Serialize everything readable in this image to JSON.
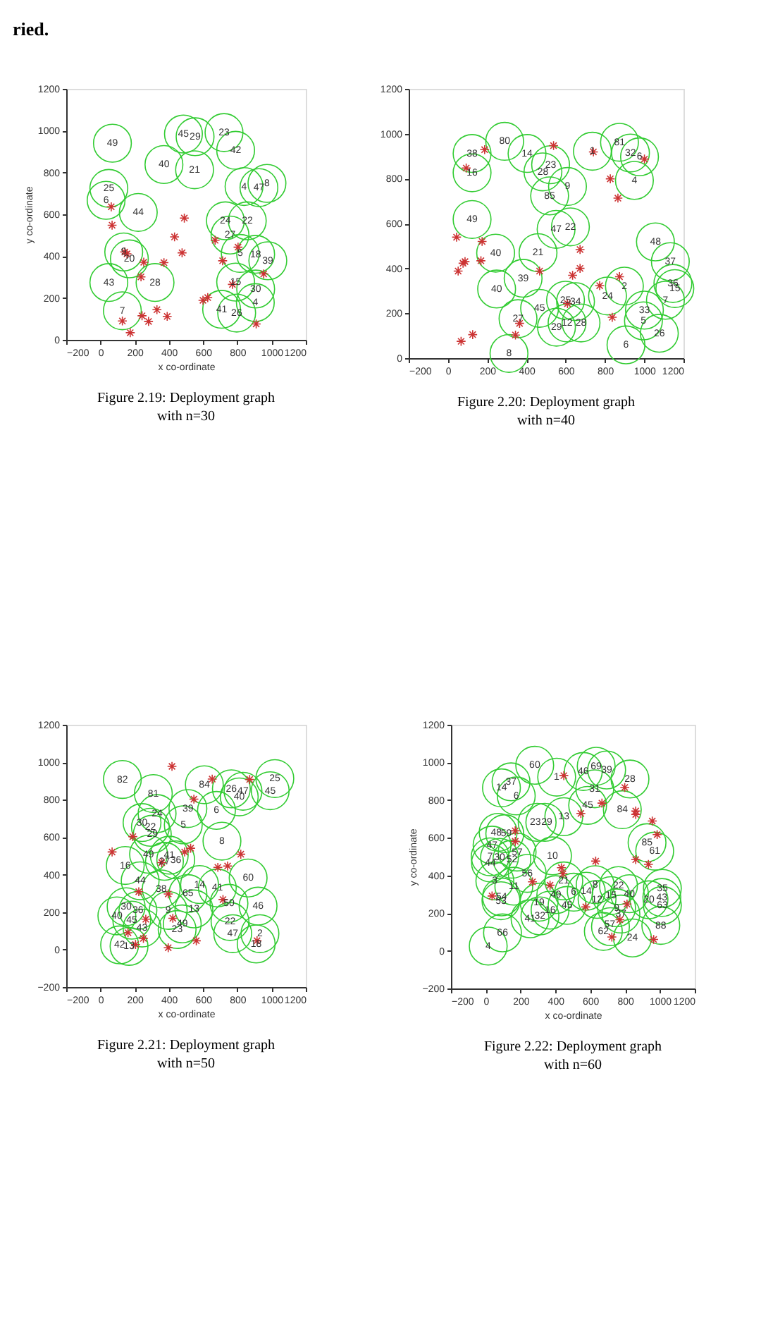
{
  "chart_data": [
    {
      "type": "scatter",
      "xlim": [
        -200,
        1200
      ],
      "ylim": [
        0,
        1200
      ],
      "xticks": [
        -200,
        0,
        200,
        400,
        600,
        800,
        1000,
        1200
      ],
      "yticks": [
        0,
        200,
        400,
        600,
        800,
        1000,
        1200
      ],
      "xlabel": "x co-ordinate",
      "ylabel": "y co-ordinate",
      "annotations": [
        "ried.",
        {
          "text": "49",
          "x": 70,
          "y": 940
        },
        {
          "text": "45",
          "x": 485,
          "y": 984
        },
        {
          "text": "29",
          "x": 553,
          "y": 971
        },
        {
          "text": "23",
          "x": 722,
          "y": 991
        },
        {
          "text": "42",
          "x": 790,
          "y": 906
        },
        {
          "text": "40",
          "x": 371,
          "y": 838
        },
        {
          "text": "21",
          "x": 550,
          "y": 813
        },
        {
          "text": "25",
          "x": 49,
          "y": 724
        },
        {
          "text": "6",
          "x": 33,
          "y": 667
        },
        {
          "text": "44",
          "x": 221,
          "y": 609
        },
        {
          "text": "4",
          "x": 839,
          "y": 733
        },
        {
          "text": "47",
          "x": 926,
          "y": 728
        },
        {
          "text": "8",
          "x": 973,
          "y": 748
        },
        {
          "text": "24",
          "x": 730,
          "y": 569
        },
        {
          "text": "22",
          "x": 858,
          "y": 569
        },
        {
          "text": "27",
          "x": 757,
          "y": 501
        },
        {
          "text": "5",
          "x": 817,
          "y": 413
        },
        {
          "text": "18",
          "x": 907,
          "y": 409
        },
        {
          "text": "39",
          "x": 978,
          "y": 378
        },
        {
          "text": "20",
          "x": 169,
          "y": 387
        },
        {
          "text": "9",
          "x": 136,
          "y": 420
        },
        {
          "text": "43",
          "x": 49,
          "y": 274
        },
        {
          "text": "28",
          "x": 319,
          "y": 274
        },
        {
          "text": "15",
          "x": 790,
          "y": 276
        },
        {
          "text": "30",
          "x": 907,
          "y": 243
        },
        {
          "text": "4",
          "x": 905,
          "y": 178
        },
        {
          "text": "41",
          "x": 708,
          "y": 146
        },
        {
          "text": "26",
          "x": 796,
          "y": 128
        },
        {
          "text": "7",
          "x": 128,
          "y": 139
        },
        "Figure 2.19: Deployment graph with n=30"
      ],
      "series": [
        {
          "color": "#33cc33",
          "marker": "circle",
          "x": [
            70,
            485,
            553,
            722,
            790,
            371,
            550,
            49,
            33,
            221,
            839,
            926,
            973,
            730,
            858,
            757,
            817,
            907,
            978,
            169,
            136,
            49,
            319,
            790,
            907,
            905,
            708,
            796,
            128
          ],
          "values": [
            940,
            984,
            971,
            991,
            906,
            838,
            813,
            724,
            667,
            609,
            733,
            728,
            748,
            569,
            569,
            501,
            413,
            409,
            378,
            387,
            420,
            274,
            274,
            276,
            243,
            178,
            146,
            128,
            139
          ]
        },
        {
          "color": "#cc3333",
          "marker": "cross",
          "x": [
            63,
            68,
            490,
            433,
            477,
            142,
            155,
            253,
            371,
            237,
            330,
            390,
            243,
            281,
            128,
            174,
            599,
            627,
            670,
            714,
            804,
            771,
            954,
            910
          ],
          "values": [
            636,
            548,
            582,
            492,
            416,
            420,
            411,
            371,
            369,
            301,
            144,
            112,
            115,
            88,
            90,
            34,
            189,
            202,
            476,
            378,
            443,
            265,
            315,
            76
          ]
        }
      ]
    },
    {
      "type": "scatter",
      "xlim": [
        -200,
        1200
      ],
      "ylim": [
        0,
        1200
      ],
      "xticks": [
        -200,
        0,
        200,
        400,
        600,
        800,
        1000,
        1200
      ],
      "yticks": [
        0,
        200,
        400,
        600,
        800,
        1000,
        1200
      ],
      "annotations": [
        {
          "text": "80",
          "x": 289,
          "y": 966
        },
        {
          "text": "38",
          "x": 123,
          "y": 912
        },
        {
          "text": "16",
          "x": 123,
          "y": 826
        },
        {
          "text": "14",
          "x": 403,
          "y": 912
        },
        {
          "text": "23",
          "x": 523,
          "y": 862
        },
        {
          "text": "28",
          "x": 484,
          "y": 830
        },
        {
          "text": "9",
          "x": 609,
          "y": 765
        },
        {
          "text": "85",
          "x": 518,
          "y": 723
        },
        {
          "text": "1",
          "x": 736,
          "y": 922
        },
        {
          "text": "81",
          "x": 874,
          "y": 962
        },
        {
          "text": "32",
          "x": 930,
          "y": 914
        },
        {
          "text": "6",
          "x": 976,
          "y": 897
        },
        {
          "text": "4",
          "x": 950,
          "y": 792
        },
        {
          "text": "49",
          "x": 123,
          "y": 618
        },
        {
          "text": "47",
          "x": 551,
          "y": 574
        },
        {
          "text": "22",
          "x": 624,
          "y": 585
        },
        {
          "text": "48",
          "x": 1057,
          "y": 518
        },
        {
          "text": "40",
          "x": 243,
          "y": 468
        },
        {
          "text": "21",
          "x": 459,
          "y": 470
        },
        {
          "text": "37",
          "x": 1133,
          "y": 430
        },
        {
          "text": "39",
          "x": 383,
          "y": 356
        },
        {
          "text": "40",
          "x": 248,
          "y": 308
        },
        {
          "text": "2",
          "x": 899,
          "y": 321
        },
        {
          "text": "24",
          "x": 813,
          "y": 277
        },
        {
          "text": "36",
          "x": 1146,
          "y": 333
        },
        {
          "text": "15",
          "x": 1156,
          "y": 310
        },
        {
          "text": "7",
          "x": 1108,
          "y": 258
        },
        {
          "text": "25",
          "x": 599,
          "y": 258
        },
        {
          "text": "34",
          "x": 650,
          "y": 252
        },
        {
          "text": "45",
          "x": 467,
          "y": 222
        },
        {
          "text": "27",
          "x": 357,
          "y": 176
        },
        {
          "text": "29",
          "x": 553,
          "y": 138
        },
        {
          "text": "12",
          "x": 607,
          "y": 157
        },
        {
          "text": "28",
          "x": 678,
          "y": 157
        },
        {
          "text": "33",
          "x": 1001,
          "y": 214
        },
        {
          "text": "5",
          "x": 996,
          "y": 166
        },
        {
          "text": "26",
          "x": 1077,
          "y": 111
        },
        {
          "text": "6",
          "x": 907,
          "y": 59
        },
        {
          "text": "8",
          "x": 311,
          "y": 21
        },
        "Figure 2.20: Deployment graph with n=40"
      ],
      "series": [
        {
          "color": "#33cc33",
          "marker": "circle",
          "x": [
            289,
            123,
            123,
            403,
            523,
            484,
            609,
            518,
            736,
            874,
            930,
            976,
            950,
            123,
            551,
            624,
            1057,
            243,
            459,
            1133,
            383,
            248,
            899,
            813,
            1146,
            1156,
            1108,
            599,
            650,
            467,
            357,
            553,
            607,
            678,
            1001,
            996,
            1077,
            907,
            311
          ],
          "values": [
            966,
            912,
            826,
            912,
            862,
            830,
            765,
            723,
            922,
            962,
            914,
            897,
            792,
            618,
            574,
            585,
            518,
            468,
            470,
            430,
            356,
            308,
            321,
            277,
            333,
            310,
            258,
            258,
            252,
            222,
            176,
            138,
            157,
            157,
            214,
            166,
            111,
            59,
            21
          ]
        },
        {
          "color": "#cc3333",
          "marker": "cross",
          "x": [
            187,
            93,
            538,
            741,
            827,
            866,
            1001,
            44,
            174,
            168,
            87,
            77,
            52,
            467,
            673,
            673,
            635,
            874,
            773,
            837,
            365,
            344,
            126,
            67,
            609
          ],
          "values": [
            929,
            847,
            947,
            919,
            799,
            713,
            887,
            539,
            520,
            434,
            430,
            423,
            388,
            388,
            484,
            400,
            369,
            363,
            323,
            182,
            155,
            103,
            105,
            75,
            243
          ]
        }
      ]
    },
    {
      "type": "scatter",
      "xlim": [
        -200,
        1200
      ],
      "ylim": [
        -200,
        1200
      ],
      "xticks": [
        -200,
        0,
        200,
        400,
        600,
        800,
        1000,
        1200
      ],
      "yticks": [
        -200,
        0,
        200,
        400,
        600,
        800,
        1000,
        1200
      ],
      "xlabel": "x co-ordinate",
      "annotations": [
        {
          "text": "82",
          "x": 128,
          "y": 908
        },
        {
          "text": "84",
          "x": 607,
          "y": 880
        },
        {
          "text": "26",
          "x": 765,
          "y": 858
        },
        {
          "text": "47",
          "x": 833,
          "y": 845
        },
        {
          "text": "40",
          "x": 811,
          "y": 815
        },
        {
          "text": "25",
          "x": 1019,
          "y": 913
        },
        {
          "text": "45",
          "x": 992,
          "y": 848
        },
        {
          "text": "81",
          "x": 309,
          "y": 833
        },
        {
          "text": "39",
          "x": 511,
          "y": 753
        },
        {
          "text": "6",
          "x": 678,
          "y": 743
        },
        {
          "text": "24",
          "x": 331,
          "y": 726
        },
        {
          "text": "30",
          "x": 243,
          "y": 678
        },
        {
          "text": "22",
          "x": 292,
          "y": 653
        },
        {
          "text": "29",
          "x": 303,
          "y": 616
        },
        {
          "text": "5",
          "x": 484,
          "y": 666
        },
        {
          "text": "8",
          "x": 710,
          "y": 579
        },
        {
          "text": "49",
          "x": 281,
          "y": 509
        },
        {
          "text": "41",
          "x": 402,
          "y": 504
        },
        {
          "text": "27",
          "x": 374,
          "y": 471
        },
        {
          "text": "36",
          "x": 440,
          "y": 479
        },
        {
          "text": "16",
          "x": 145,
          "y": 449
        },
        {
          "text": "60",
          "x": 863,
          "y": 382
        },
        {
          "text": "44",
          "x": 232,
          "y": 367
        },
        {
          "text": "14",
          "x": 579,
          "y": 347
        },
        {
          "text": "38",
          "x": 355,
          "y": 324
        },
        {
          "text": "65",
          "x": 511,
          "y": 299
        },
        {
          "text": "41",
          "x": 683,
          "y": 329
        },
        {
          "text": "50",
          "x": 751,
          "y": 247
        },
        {
          "text": "46",
          "x": 921,
          "y": 232
        },
        {
          "text": "30",
          "x": 150,
          "y": 229
        },
        {
          "text": "36",
          "x": 219,
          "y": 209
        },
        {
          "text": "40",
          "x": 96,
          "y": 180
        },
        {
          "text": "45",
          "x": 183,
          "y": 157
        },
        {
          "text": "9",
          "x": 396,
          "y": 209
        },
        {
          "text": "13",
          "x": 546,
          "y": 217
        },
        {
          "text": "22",
          "x": 757,
          "y": 150
        },
        {
          "text": "43",
          "x": 243,
          "y": 115
        },
        {
          "text": "49",
          "x": 478,
          "y": 137
        },
        {
          "text": "23",
          "x": 448,
          "y": 107
        },
        {
          "text": "47",
          "x": 773,
          "y": 85
        },
        {
          "text": "2",
          "x": 932,
          "y": 85
        },
        {
          "text": "18",
          "x": 910,
          "y": 30
        },
        {
          "text": "42",
          "x": 112,
          "y": 25
        },
        {
          "text": "13",
          "x": 167,
          "y": 17
        },
        "Figure 2.21: Deployment graph with n=50"
      ],
      "series": [
        {
          "color": "#33cc33",
          "marker": "circle",
          "x": [
            128,
            607,
            765,
            833,
            811,
            1019,
            992,
            309,
            511,
            678,
            331,
            243,
            292,
            303,
            484,
            710,
            281,
            402,
            374,
            440,
            145,
            863,
            232,
            579,
            355,
            511,
            683,
            751,
            921,
            150,
            219,
            96,
            183,
            396,
            546,
            757,
            243,
            478,
            448,
            773,
            932,
            910,
            112,
            167
          ],
          "values": [
            908,
            880,
            858,
            845,
            815,
            913,
            848,
            833,
            753,
            743,
            726,
            678,
            653,
            616,
            666,
            579,
            509,
            504,
            471,
            479,
            449,
            382,
            367,
            347,
            324,
            299,
            329,
            247,
            232,
            229,
            209,
            180,
            157,
            209,
            217,
            150,
            115,
            137,
            107,
            85,
            85,
            30,
            25,
            17
          ]
        },
        {
          "color": "#cc3333",
          "marker": "cross",
          "x": [
            418,
            653,
            872,
            546,
            189,
            68,
            492,
            527,
            820,
            686,
            743,
            358,
            224,
            396,
            716,
            423,
            265,
            161,
            251,
            205,
            396,
            560,
            915
          ],
          "values": [
            978,
            910,
            908,
            803,
            603,
            521,
            521,
            541,
            509,
            439,
            446,
            464,
            309,
            297,
            267,
            167,
            162,
            90,
            60,
            27,
            10,
            47,
            47
          ]
        }
      ]
    },
    {
      "type": "scatter",
      "xlim": [
        -200,
        1200
      ],
      "ylim": [
        -200,
        1200
      ],
      "xticks": [
        -200,
        0,
        200,
        400,
        600,
        800,
        1000,
        1200
      ],
      "yticks": [
        -200,
        0,
        200,
        400,
        600,
        800,
        1000,
        1200
      ],
      "xlabel": "x co-ordinate",
      "ylabel": "y co-ordinate",
      "annotations": [
        {
          "text": "60",
          "x": 281,
          "y": 985
        },
        {
          "text": "1",
          "x": 407,
          "y": 922
        },
        {
          "text": "46",
          "x": 560,
          "y": 952
        },
        {
          "text": "69",
          "x": 634,
          "y": 980
        },
        {
          "text": "39",
          "x": 694,
          "y": 960
        },
        {
          "text": "28",
          "x": 828,
          "y": 912
        },
        {
          "text": "31",
          "x": 626,
          "y": 860
        },
        {
          "text": "14",
          "x": 90,
          "y": 865
        },
        {
          "text": "37",
          "x": 145,
          "y": 897
        },
        {
          "text": "6",
          "x": 175,
          "y": 822
        },
        {
          "text": "45",
          "x": 585,
          "y": 772
        },
        {
          "text": "84",
          "x": 784,
          "y": 749
        },
        {
          "text": "13",
          "x": 448,
          "y": 712
        },
        {
          "text": "23",
          "x": 285,
          "y": 682
        },
        {
          "text": "29",
          "x": 350,
          "y": 682
        },
        {
          "text": "48",
          "x": 60,
          "y": 629
        },
        {
          "text": "59",
          "x": 118,
          "y": 622
        },
        {
          "text": "85",
          "x": 926,
          "y": 574
        },
        {
          "text": "61",
          "x": 970,
          "y": 529
        },
        {
          "text": "47",
          "x": 36,
          "y": 561
        },
        {
          "text": "57",
          "x": 180,
          "y": 524
        },
        {
          "text": "7",
          "x": 25,
          "y": 499
        },
        {
          "text": "30",
          "x": 79,
          "y": 496
        },
        {
          "text": "52",
          "x": 150,
          "y": 486
        },
        {
          "text": "44",
          "x": 27,
          "y": 466
        },
        {
          "text": "10",
          "x": 383,
          "y": 504
        },
        {
          "text": "56",
          "x": 238,
          "y": 411
        },
        {
          "text": "3",
          "x": 52,
          "y": 371
        },
        {
          "text": "11",
          "x": 161,
          "y": 343
        },
        {
          "text": "21",
          "x": 448,
          "y": 371
        },
        {
          "text": "49",
          "x": 402,
          "y": 298
        },
        {
          "text": "6",
          "x": 505,
          "y": 311
        },
        {
          "text": "14",
          "x": 577,
          "y": 316
        },
        {
          "text": "8",
          "x": 628,
          "y": 351
        },
        {
          "text": "22",
          "x": 762,
          "y": 346
        },
        {
          "text": "15",
          "x": 719,
          "y": 293
        },
        {
          "text": "40",
          "x": 825,
          "y": 303
        },
        {
          "text": "12",
          "x": 639,
          "y": 273
        },
        {
          "text": "20",
          "x": 937,
          "y": 271
        },
        {
          "text": "35",
          "x": 1014,
          "y": 331
        },
        {
          "text": "43",
          "x": 1011,
          "y": 283
        },
        {
          "text": "63",
          "x": 1014,
          "y": 241
        },
        {
          "text": "54",
          "x": 90,
          "y": 286
        },
        {
          "text": "53",
          "x": 87,
          "y": 266
        },
        {
          "text": "19",
          "x": 306,
          "y": 258
        },
        {
          "text": "16",
          "x": 369,
          "y": 216
        },
        {
          "text": "45",
          "x": 467,
          "y": 241
        },
        {
          "text": "41",
          "x": 254,
          "y": 170
        },
        {
          "text": "32",
          "x": 311,
          "y": 185
        },
        {
          "text": "9",
          "x": 751,
          "y": 228
        },
        {
          "text": "37",
          "x": 776,
          "y": 195
        },
        {
          "text": "62",
          "x": 675,
          "y": 103
        },
        {
          "text": "57",
          "x": 712,
          "y": 140
        },
        {
          "text": "24",
          "x": 842,
          "y": 68
        },
        {
          "text": "88",
          "x": 1005,
          "y": 135
        },
        {
          "text": "66",
          "x": 96,
          "y": 95
        },
        {
          "text": "4",
          "x": 14,
          "y": 25
        },
        "Figure 2.22: Deployment graph with n=60"
      ],
      "series": [
        {
          "color": "#33cc33",
          "marker": "circle",
          "x": [
            281,
            407,
            560,
            634,
            694,
            828,
            626,
            90,
            145,
            175,
            585,
            784,
            448,
            295,
            339,
            71,
            109,
            926,
            970,
            36,
            180,
            25,
            79,
            150,
            27,
            383,
            238,
            52,
            161,
            448,
            402,
            505,
            577,
            628,
            762,
            719,
            825,
            639,
            937,
            1014,
            1011,
            1014,
            90,
            87,
            306,
            369,
            467,
            254,
            311,
            751,
            776,
            675,
            716,
            842,
            1005,
            96,
            14
          ],
          "values": [
            985,
            922,
            952,
            980,
            960,
            912,
            860,
            865,
            897,
            822,
            772,
            749,
            712,
            682,
            682,
            629,
            622,
            574,
            529,
            561,
            524,
            499,
            496,
            486,
            466,
            504,
            411,
            371,
            343,
            371,
            298,
            311,
            316,
            351,
            346,
            293,
            303,
            273,
            271,
            331,
            283,
            241,
            286,
            266,
            258,
            216,
            241,
            170,
            185,
            228,
            195,
            103,
            128,
            68,
            135,
            95,
            25
          ]
        },
        {
          "color": "#cc3333",
          "marker": "cross",
          "x": [
            448,
            798,
            667,
            546,
            861,
            861,
            956,
            984,
            169,
            169,
            934,
            861,
            631,
            434,
            443,
            268,
            369,
            36,
            574,
            811,
            770,
            724,
            964
          ],
          "values": [
            930,
            867,
            784,
            729,
            742,
            724,
            689,
            617,
            637,
            581,
            459,
            484,
            476,
            441,
            409,
            366,
            348,
            291,
            233,
            248,
            165,
            73,
            60
          ]
        }
      ]
    }
  ]
}
